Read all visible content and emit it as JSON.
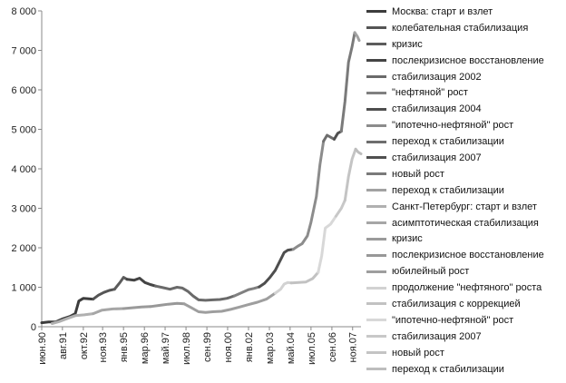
{
  "chart_data": {
    "type": "line",
    "title": "",
    "xlabel": "",
    "ylabel": "",
    "ylim": [
      0,
      8000
    ],
    "yticks": [
      0,
      1000,
      2000,
      3000,
      4000,
      5000,
      6000,
      7000,
      8000
    ],
    "ytick_labels": [
      "0",
      "1 000",
      "2 000",
      "3 000",
      "4 000",
      "5 000",
      "6 000",
      "7 000",
      "8 000"
    ],
    "x_range": [
      1990.42,
      2008.3
    ],
    "xticks": [
      {
        "label": "июн.90",
        "x": 1990.42
      },
      {
        "label": "авг.91",
        "x": 1991.58
      },
      {
        "label": "окт.92",
        "x": 1992.75
      },
      {
        "label": "ноя.93",
        "x": 1993.83
      },
      {
        "label": "янв.95",
        "x": 1995.0
      },
      {
        "label": "мар.96",
        "x": 1996.17
      },
      {
        "label": "май.97",
        "x": 1997.33
      },
      {
        "label": "июл.98",
        "x": 1998.5
      },
      {
        "label": "сен.99",
        "x": 1999.67
      },
      {
        "label": "ноя.00",
        "x": 2000.83
      },
      {
        "label": "янв.02",
        "x": 2002.0
      },
      {
        "label": "мар.03",
        "x": 2003.17
      },
      {
        "label": "май.04",
        "x": 2004.33
      },
      {
        "label": "июл.05",
        "x": 2005.5
      },
      {
        "label": "сен.06",
        "x": 2006.67
      },
      {
        "label": "ноя.07",
        "x": 2007.83
      }
    ],
    "legend_position": "right",
    "grid": false,
    "series": [
      {
        "name": "Москва: старт и взлет",
        "color": "#3c3c3c",
        "points": [
          [
            1990.42,
            100
          ],
          [
            1990.8,
            120
          ],
          [
            1991.2,
            120
          ],
          [
            1991.6,
            200
          ],
          [
            1992.0,
            260
          ],
          [
            1992.3,
            330
          ],
          [
            1992.5,
            650
          ],
          [
            1992.75,
            720
          ],
          [
            1993.0,
            710
          ],
          [
            1993.3,
            700
          ]
        ]
      },
      {
        "name": "колебательная стабилизация",
        "color": "#555555",
        "points": [
          [
            1993.3,
            700
          ],
          [
            1993.6,
            800
          ],
          [
            1993.9,
            870
          ],
          [
            1994.2,
            920
          ],
          [
            1994.5,
            950
          ]
        ]
      },
      {
        "name": "кризис",
        "color": "#5c5c5c",
        "points": [
          [
            1994.5,
            950
          ],
          [
            1994.8,
            1120
          ],
          [
            1995.0,
            1250
          ],
          [
            1995.2,
            1200
          ]
        ]
      },
      {
        "name": "послекризисное восстановление",
        "color": "#444444",
        "points": [
          [
            1995.2,
            1200
          ],
          [
            1995.6,
            1180
          ],
          [
            1995.9,
            1230
          ],
          [
            1996.2,
            1120
          ],
          [
            1996.5,
            1070
          ],
          [
            1996.8,
            1030
          ]
        ]
      },
      {
        "name": "стабилизация 2002",
        "color": "#6a6a6a",
        "points": [
          [
            1996.8,
            1030
          ],
          [
            1997.2,
            990
          ],
          [
            1997.6,
            950
          ],
          [
            1998.0,
            1000
          ],
          [
            1998.3,
            980
          ],
          [
            1998.6,
            900
          ],
          [
            1998.9,
            780
          ],
          [
            1999.2,
            680
          ],
          [
            1999.6,
            670
          ],
          [
            2000.0,
            680
          ],
          [
            2000.4,
            690
          ],
          [
            2000.8,
            720
          ],
          [
            2001.2,
            780
          ]
        ]
      },
      {
        "name": "\"нефтяной\" рост",
        "color": "#808080",
        "points": [
          [
            2001.2,
            780
          ],
          [
            2001.6,
            860
          ],
          [
            2002.0,
            940
          ],
          [
            2002.3,
            970
          ],
          [
            2002.6,
            1010
          ]
        ]
      },
      {
        "name": "стабилизация 2004",
        "color": "#4e4e4e",
        "points": [
          [
            2002.6,
            1010
          ],
          [
            2002.9,
            1100
          ],
          [
            2003.2,
            1250
          ],
          [
            2003.5,
            1430
          ],
          [
            2003.8,
            1700
          ],
          [
            2004.0,
            1880
          ],
          [
            2004.2,
            1940
          ],
          [
            2004.5,
            1960
          ]
        ]
      },
      {
        "name": "\"ипотечно-нефтяной\" рост",
        "color": "#8c8c8c",
        "points": [
          [
            2004.5,
            1960
          ],
          [
            2004.8,
            2050
          ],
          [
            2005.0,
            2100
          ],
          [
            2005.3,
            2300
          ],
          [
            2005.5,
            2650
          ],
          [
            2005.8,
            3300
          ],
          [
            2006.0,
            4100
          ],
          [
            2006.2,
            4700
          ]
        ]
      },
      {
        "name": "переход к стабилизации",
        "color": "#6e6e6e",
        "points": [
          [
            2006.2,
            4700
          ],
          [
            2006.4,
            4850
          ],
          [
            2006.6,
            4800
          ],
          [
            2006.8,
            4750
          ]
        ]
      },
      {
        "name": "стабилизация 2007",
        "color": "#505050",
        "points": [
          [
            2006.8,
            4750
          ],
          [
            2007.0,
            4900
          ],
          [
            2007.2,
            4950
          ]
        ]
      },
      {
        "name": "новый рост",
        "color": "#7a7a7a",
        "points": [
          [
            2007.2,
            4950
          ],
          [
            2007.4,
            5700
          ],
          [
            2007.6,
            6700
          ],
          [
            2007.8,
            7100
          ],
          [
            2007.95,
            7450
          ]
        ]
      },
      {
        "name": "переход к стабилизации",
        "color": "#a2a2a2",
        "points": [
          [
            2007.95,
            7450
          ],
          [
            2008.1,
            7350
          ],
          [
            2008.2,
            7250
          ]
        ]
      },
      {
        "name": "Санкт-Петербург: старт и взлет",
        "color": "#b0b0b0",
        "points": [
          [
            1991.0,
            80
          ],
          [
            1991.4,
            130
          ],
          [
            1991.8,
            200
          ],
          [
            1992.3,
            280
          ],
          [
            1992.8,
            300
          ],
          [
            1993.3,
            330
          ]
        ]
      },
      {
        "name": "асимптотическая стабилизация",
        "color": "#a6a6a6",
        "points": [
          [
            1993.3,
            330
          ],
          [
            1993.8,
            420
          ],
          [
            1994.4,
            450
          ],
          [
            1995.0,
            460
          ]
        ]
      },
      {
        "name": "кризис",
        "color": "#9a9a9a",
        "points": [
          [
            1995.0,
            460
          ],
          [
            1995.5,
            480
          ],
          [
            1996.0,
            500
          ],
          [
            1996.5,
            510
          ]
        ]
      },
      {
        "name": "послекризисное восстановление",
        "color": "#989898",
        "points": [
          [
            1996.5,
            510
          ],
          [
            1997.0,
            540
          ],
          [
            1997.5,
            570
          ],
          [
            1998.0,
            590
          ],
          [
            1998.4,
            580
          ]
        ]
      },
      {
        "name": "юбилейный рост",
        "color": "#9e9e9e",
        "points": [
          [
            1998.4,
            580
          ],
          [
            1998.8,
            480
          ],
          [
            1999.2,
            380
          ],
          [
            1999.6,
            360
          ],
          [
            2000.0,
            380
          ],
          [
            2000.5,
            390
          ],
          [
            2001.0,
            440
          ],
          [
            2001.5,
            500
          ],
          [
            2002.0,
            560
          ],
          [
            2002.5,
            620
          ],
          [
            2003.0,
            700
          ],
          [
            2003.5,
            850
          ]
        ]
      },
      {
        "name": "продолжение \"нефтяного\" роста",
        "color": "#d2d2d2",
        "points": [
          [
            2003.5,
            850
          ],
          [
            2003.8,
            950
          ],
          [
            2004.0,
            1080
          ],
          [
            2004.2,
            1120
          ],
          [
            2004.4,
            1110
          ]
        ]
      },
      {
        "name": "стабилизация с коррекцией",
        "color": "#c2c2c2",
        "points": [
          [
            2004.4,
            1110
          ],
          [
            2004.8,
            1120
          ],
          [
            2005.2,
            1130
          ],
          [
            2005.6,
            1220
          ],
          [
            2005.9,
            1380
          ]
        ]
      },
      {
        "name": "\"ипотечно-нефтяной\" рост",
        "color": "#d8d8d8",
        "points": [
          [
            2005.9,
            1380
          ],
          [
            2006.1,
            1800
          ],
          [
            2006.3,
            2500
          ],
          [
            2006.6,
            2600
          ],
          [
            2006.9,
            2800
          ]
        ]
      },
      {
        "name": "стабилизация 2007",
        "color": "#c8c8c8",
        "points": [
          [
            2006.9,
            2800
          ],
          [
            2007.2,
            3000
          ],
          [
            2007.4,
            3200
          ]
        ]
      },
      {
        "name": "новый рост",
        "color": "#c4c4c4",
        "points": [
          [
            2007.4,
            3200
          ],
          [
            2007.6,
            3800
          ],
          [
            2007.8,
            4250
          ],
          [
            2008.0,
            4500
          ]
        ]
      },
      {
        "name": "переход к стабилизации",
        "color": "#bdbdbd",
        "points": [
          [
            2008.0,
            4500
          ],
          [
            2008.15,
            4420
          ],
          [
            2008.3,
            4380
          ]
        ]
      }
    ]
  }
}
